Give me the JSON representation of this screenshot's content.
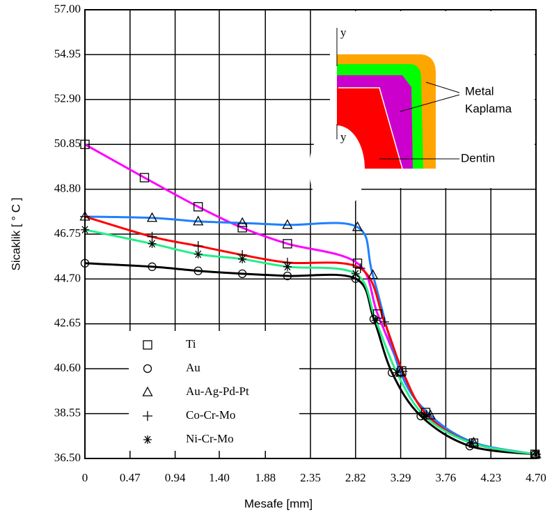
{
  "chart_data": {
    "type": "line",
    "xlabel": "Mesafe    [mm]",
    "ylabel": "Sicaklik  [ ° C ]",
    "xlim": [
      0,
      4.7
    ],
    "ylim": [
      36.5,
      57
    ],
    "xticks": [
      0,
      0.47,
      0.94,
      {
        "value": 1.4,
        "label": "1.40"
      },
      1.88,
      2.35,
      2.82,
      3.29,
      3.76,
      4.23,
      {
        "value": 4.7,
        "label": "4.70"
      }
    ],
    "yticks": [
      {
        "value": 36.5,
        "label": "36.50"
      },
      38.55,
      {
        "value": 40.6,
        "label": "40.60"
      },
      42.65,
      {
        "value": 44.7,
        "label": "44.70"
      },
      46.75,
      {
        "value": 48.8,
        "label": "48.80"
      },
      50.85,
      {
        "value": 52.9,
        "label": "52.90"
      },
      54.95,
      {
        "value": 57,
        "label": "57.00"
      }
    ],
    "grid": true,
    "legend": "lower left",
    "series": [
      {
        "name": "Ti",
        "marker": "square",
        "color": "#ff00ff",
        "x": [
          0,
          0.62,
          1.18,
          1.64,
          2.11,
          2.84,
          3.05,
          3.3,
          3.55,
          4.05,
          4.69
        ],
        "values": [
          50.85,
          49.33,
          48.0,
          47.04,
          46.31,
          45.42,
          43.1,
          40.5,
          38.6,
          37.2,
          36.69
        ]
      },
      {
        "name": "Au",
        "marker": "circle",
        "color": "#000000",
        "x": [
          0,
          0.7,
          1.18,
          1.64,
          2.11,
          2.82,
          3.01,
          3.2,
          3.5,
          4.01,
          4.69
        ],
        "values": [
          45.42,
          45.26,
          45.07,
          44.94,
          44.84,
          44.72,
          42.87,
          40.42,
          38.44,
          37.07,
          36.69
        ]
      },
      {
        "name": "Au-Ag-Pd-Pt",
        "marker": "triangle",
        "color": "#1e7fff",
        "x": [
          0,
          0.7,
          1.18,
          1.64,
          2.11,
          2.84,
          3.0,
          3.29,
          3.6,
          4.05,
          4.7
        ],
        "values": [
          47.55,
          47.49,
          47.33,
          47.26,
          47.17,
          47.07,
          44.88,
          40.42,
          38.47,
          37.23,
          36.69
        ]
      },
      {
        "name": "Co-Cr-Mo",
        "marker": "plus",
        "color": "#ff0000",
        "x": [
          0,
          0.7,
          1.18,
          1.64,
          2.11,
          2.87,
          3.12,
          3.31,
          3.56,
          4.03,
          4.7
        ],
        "values": [
          47.55,
          46.63,
          46.21,
          45.8,
          45.45,
          45.19,
          42.74,
          40.48,
          38.5,
          37.2,
          36.69
        ]
      },
      {
        "name": "Ni-Cr-Mo",
        "marker": "star",
        "color": "#22ee88",
        "x": [
          0,
          0.7,
          1.18,
          1.64,
          2.11,
          2.82,
          3.03,
          3.25,
          3.54,
          4.03,
          4.7
        ],
        "values": [
          46.95,
          46.31,
          45.83,
          45.61,
          45.26,
          44.94,
          42.81,
          40.42,
          38.44,
          37.2,
          36.69
        ]
      }
    ],
    "inset": {
      "labels": [
        "y",
        "y",
        "Metal",
        "Kaplama",
        "Dentin"
      ]
    }
  }
}
